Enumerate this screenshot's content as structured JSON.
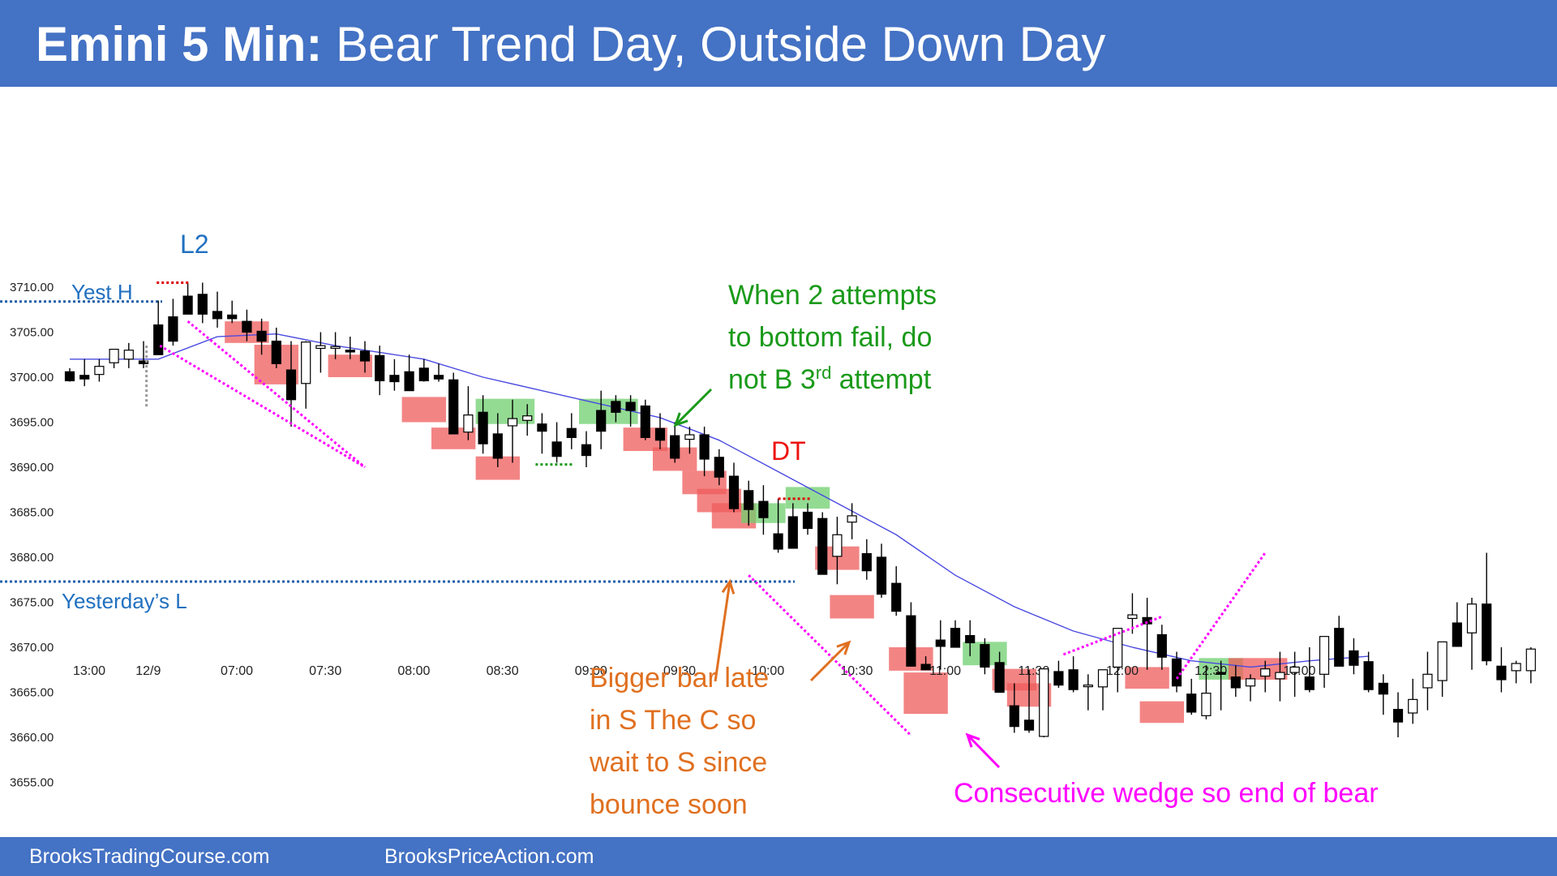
{
  "header": {
    "title_bold": "Emini 5 Min:",
    "title_rest": "Bear Trend Day, Outside Down Day"
  },
  "footer": {
    "left": "BrooksTradingCourse.com",
    "right": "BrooksPriceAction.com"
  },
  "colors": {
    "header_bg": "#4472c4",
    "bear_body": "#000000",
    "bull_body": "#ffffff",
    "ema": "#4a4ae0",
    "bear_highlight": "#ef5b5b",
    "bull_highlight": "#6fcf6f",
    "magenta": "#ff00ff",
    "green_text": "#1a9a1a",
    "orange_text": "#e07020",
    "red_text": "#ee1111",
    "blue_text": "#2070c0"
  },
  "chart_data": {
    "type": "candlestick",
    "y_ticks": [
      "3710.00",
      "3705.00",
      "3700.00",
      "3695.00",
      "3690.00",
      "3685.00",
      "3680.00",
      "3675.00",
      "3670.00",
      "3665.00",
      "3660.00",
      "3655.00"
    ],
    "y_tick_values": [
      3710,
      3705,
      3700,
      3695,
      3690,
      3685,
      3680,
      3675,
      3670,
      3665,
      3660,
      3655
    ],
    "x_ticks": [
      {
        "label": "13:00",
        "bar": 0
      },
      {
        "label": "12/9",
        "bar": 4
      },
      {
        "label": "07:00",
        "bar": 10
      },
      {
        "label": "07:30",
        "bar": 16
      },
      {
        "label": "08:00",
        "bar": 22
      },
      {
        "label": "08:30",
        "bar": 28
      },
      {
        "label": "09:00",
        "bar": 34
      },
      {
        "label": "09:30",
        "bar": 40
      },
      {
        "label": "10:00",
        "bar": 46
      },
      {
        "label": "10:30",
        "bar": 52
      },
      {
        "label": "11:00",
        "bar": 58
      },
      {
        "label": "11:30",
        "bar": 64
      },
      {
        "label": "12:00",
        "bar": 70
      },
      {
        "label": "12:30",
        "bar": 76
      },
      {
        "label": "13:00",
        "bar": 82
      }
    ],
    "levels": [
      {
        "label": "Yest H",
        "value": 3708.4
      },
      {
        "label": "Yesterday’s L",
        "value": 3677.3
      }
    ],
    "bars": [
      [
        3700.6,
        3701.0,
        3699.5,
        3699.6
      ],
      [
        3700.2,
        3702.0,
        3699.0,
        3699.8
      ],
      [
        3700.3,
        3702.0,
        3699.5,
        3701.2
      ],
      [
        3701.6,
        3703.0,
        3701.0,
        3703.1
      ],
      [
        3702.0,
        3703.8,
        3701.0,
        3703.0
      ],
      [
        3701.8,
        3704.0,
        3701.0,
        3701.5
      ],
      [
        3705.8,
        3708.5,
        3704.3,
        3702.5
      ],
      [
        3706.7,
        3708.7,
        3703.5,
        3704.0
      ],
      [
        3709.0,
        3710.5,
        3707.0,
        3707.0
      ],
      [
        3709.2,
        3710.5,
        3706.0,
        3707.0
      ],
      [
        3707.3,
        3709.5,
        3705.5,
        3706.5
      ],
      [
        3706.9,
        3708.5,
        3706.0,
        3706.5
      ],
      [
        3706.2,
        3707.5,
        3704.0,
        3705.0
      ],
      [
        3705.1,
        3706.5,
        3702.5,
        3704.0
      ],
      [
        3704.0,
        3705.5,
        3701.0,
        3701.5
      ],
      [
        3700.8,
        3704.0,
        3694.5,
        3697.5
      ],
      [
        3699.3,
        3704.0,
        3696.5,
        3703.9
      ],
      [
        3703.2,
        3705.0,
        3700.5,
        3703.5
      ],
      [
        3703.2,
        3705.0,
        3702.0,
        3703.4
      ],
      [
        3703.0,
        3704.5,
        3702.0,
        3702.8
      ],
      [
        3702.9,
        3704.0,
        3700.5,
        3701.8
      ],
      [
        3702.4,
        3703.5,
        3698.0,
        3699.6
      ],
      [
        3700.2,
        3702.0,
        3698.5,
        3699.5
      ],
      [
        3700.6,
        3702.5,
        3698.5,
        3698.5
      ],
      [
        3701.0,
        3702.0,
        3699.5,
        3699.6
      ],
      [
        3700.2,
        3701.5,
        3699.5,
        3699.8
      ],
      [
        3699.7,
        3700.5,
        3694.0,
        3693.7
      ],
      [
        3693.9,
        3699.0,
        3693.0,
        3695.8
      ],
      [
        3696.1,
        3698.0,
        3691.5,
        3692.6
      ],
      [
        3693.7,
        3696.0,
        3690.0,
        3691.0
      ],
      [
        3694.6,
        3697.5,
        3690.5,
        3695.4
      ],
      [
        3695.2,
        3697.0,
        3693.5,
        3695.7
      ],
      [
        3694.8,
        3696.0,
        3691.5,
        3694.0
      ],
      [
        3692.8,
        3695.0,
        3690.5,
        3691.2
      ],
      [
        3694.3,
        3696.0,
        3692.0,
        3693.3
      ],
      [
        3692.5,
        3694.0,
        3690.0,
        3691.3
      ],
      [
        3696.3,
        3698.5,
        3692.0,
        3694.0
      ],
      [
        3697.3,
        3698.0,
        3695.0,
        3696.1
      ],
      [
        3697.2,
        3698.0,
        3694.5,
        3696.3
      ],
      [
        3696.8,
        3697.5,
        3693.0,
        3693.3
      ],
      [
        3694.3,
        3696.0,
        3692.0,
        3693.0
      ],
      [
        3693.5,
        3695.0,
        3690.5,
        3691.0
      ],
      [
        3693.1,
        3694.5,
        3691.5,
        3693.6
      ],
      [
        3693.6,
        3694.5,
        3689.0,
        3690.9
      ],
      [
        3691.1,
        3692.0,
        3688.0,
        3688.9
      ],
      [
        3689.0,
        3690.5,
        3685.0,
        3685.4
      ],
      [
        3687.4,
        3688.5,
        3683.5,
        3685.3
      ],
      [
        3686.2,
        3688.0,
        3682.5,
        3684.4
      ],
      [
        3682.6,
        3686.5,
        3680.5,
        3680.9
      ],
      [
        3684.5,
        3686.0,
        3681.0,
        3681.0
      ],
      [
        3685.0,
        3686.0,
        3682.5,
        3683.2
      ],
      [
        3684.3,
        3685.0,
        3679.0,
        3678.1
      ],
      [
        3680.1,
        3684.5,
        3677.0,
        3682.5
      ],
      [
        3683.9,
        3686.0,
        3682.0,
        3684.6
      ],
      [
        3680.4,
        3682.0,
        3677.5,
        3678.5
      ],
      [
        3680.0,
        3681.5,
        3675.5,
        3675.9
      ],
      [
        3677.1,
        3679.0,
        3673.5,
        3674.0
      ],
      [
        3673.5,
        3675.0,
        3668.0,
        3667.9
      ],
      [
        3668.1,
        3669.0,
        3667.5,
        3667.5
      ],
      [
        3670.8,
        3673.0,
        3667.5,
        3670.1
      ],
      [
        3672.1,
        3673.0,
        3670.0,
        3670.0
      ],
      [
        3671.3,
        3673.0,
        3669.0,
        3670.5
      ],
      [
        3670.3,
        3671.0,
        3667.0,
        3667.8
      ],
      [
        3668.3,
        3669.5,
        3665.5,
        3665.0
      ],
      [
        3663.5,
        3666.0,
        3660.5,
        3661.2
      ],
      [
        3661.9,
        3667.5,
        3660.5,
        3660.8
      ],
      [
        3660.1,
        3667.0,
        3660.0,
        3667.6
      ],
      [
        3667.3,
        3668.5,
        3665.5,
        3665.8
      ],
      [
        3667.5,
        3669.0,
        3665.0,
        3665.3
      ],
      [
        3665.7,
        3667.0,
        3663.0,
        3665.8
      ],
      [
        3665.6,
        3667.0,
        3663.0,
        3667.5
      ],
      [
        3667.8,
        3670.0,
        3665.0,
        3672.1
      ],
      [
        3673.2,
        3676.0,
        3671.5,
        3673.6
      ],
      [
        3673.3,
        3675.5,
        3667.5,
        3672.6
      ],
      [
        3671.4,
        3672.5,
        3667.5,
        3668.9
      ],
      [
        3668.7,
        3669.5,
        3665.0,
        3665.7
      ],
      [
        3664.8,
        3666.5,
        3662.5,
        3662.8
      ],
      [
        3662.4,
        3668.0,
        3662.0,
        3664.9
      ],
      [
        3667.2,
        3668.5,
        3663.0,
        3667.0
      ],
      [
        3666.7,
        3668.0,
        3664.5,
        3665.5
      ],
      [
        3665.7,
        3667.0,
        3664.0,
        3666.5
      ],
      [
        3666.8,
        3668.5,
        3665.0,
        3667.6
      ],
      [
        3666.5,
        3669.5,
        3664.0,
        3667.2
      ],
      [
        3667.2,
        3669.5,
        3664.5,
        3667.8
      ],
      [
        3666.7,
        3670.0,
        3665.0,
        3665.3
      ],
      [
        3667.0,
        3671.0,
        3665.5,
        3671.2
      ],
      [
        3672.1,
        3673.5,
        3669.0,
        3667.9
      ],
      [
        3669.6,
        3671.0,
        3667.0,
        3668.0
      ],
      [
        3668.4,
        3669.5,
        3665.0,
        3665.3
      ],
      [
        3666.0,
        3667.0,
        3662.5,
        3664.8
      ],
      [
        3663.1,
        3665.0,
        3660.0,
        3661.7
      ],
      [
        3662.7,
        3666.5,
        3661.5,
        3664.2
      ],
      [
        3665.5,
        3669.5,
        3663.0,
        3667.0
      ],
      [
        3666.3,
        3670.0,
        3664.5,
        3670.6
      ],
      [
        3672.7,
        3675.0,
        3670.5,
        3670.1
      ],
      [
        3671.6,
        3675.5,
        3667.5,
        3674.8
      ],
      [
        3674.8,
        3680.5,
        3668.0,
        3668.5
      ],
      [
        3667.9,
        3670.0,
        3665.0,
        3666.4
      ],
      [
        3667.4,
        3668.5,
        3666.0,
        3668.2
      ],
      [
        3667.4,
        3670.0,
        3666.0,
        3669.8
      ]
    ],
    "ema": [
      [
        0,
        3702.0
      ],
      [
        6,
        3702.0
      ],
      [
        10,
        3704.5
      ],
      [
        14,
        3704.8
      ],
      [
        18,
        3703.5
      ],
      [
        24,
        3702.0
      ],
      [
        28,
        3700.0
      ],
      [
        32,
        3698.5
      ],
      [
        36,
        3697.0
      ],
      [
        40,
        3695.5
      ],
      [
        44,
        3693.0
      ],
      [
        48,
        3689.5
      ],
      [
        52,
        3686.0
      ],
      [
        56,
        3682.5
      ],
      [
        60,
        3678.0
      ],
      [
        64,
        3674.5
      ],
      [
        68,
        3671.8
      ],
      [
        72,
        3670.0
      ],
      [
        76,
        3668.5
      ],
      [
        80,
        3667.8
      ],
      [
        84,
        3668.5
      ],
      [
        88,
        3669.0
      ]
    ]
  },
  "annotations": {
    "l2": "L2",
    "yest_h": "Yest H",
    "yest_l": "Yesterday’s L",
    "dt": "DT",
    "two_attempts": [
      "When 2 attempts",
      "to bottom fail, do",
      "not B 3",
      "rd",
      " attempt"
    ],
    "bigger_bar": [
      "Bigger bar late",
      "in S The C so",
      "wait to S since",
      "bounce soon"
    ],
    "wedge": "Consecutive wedge so end of bear"
  }
}
